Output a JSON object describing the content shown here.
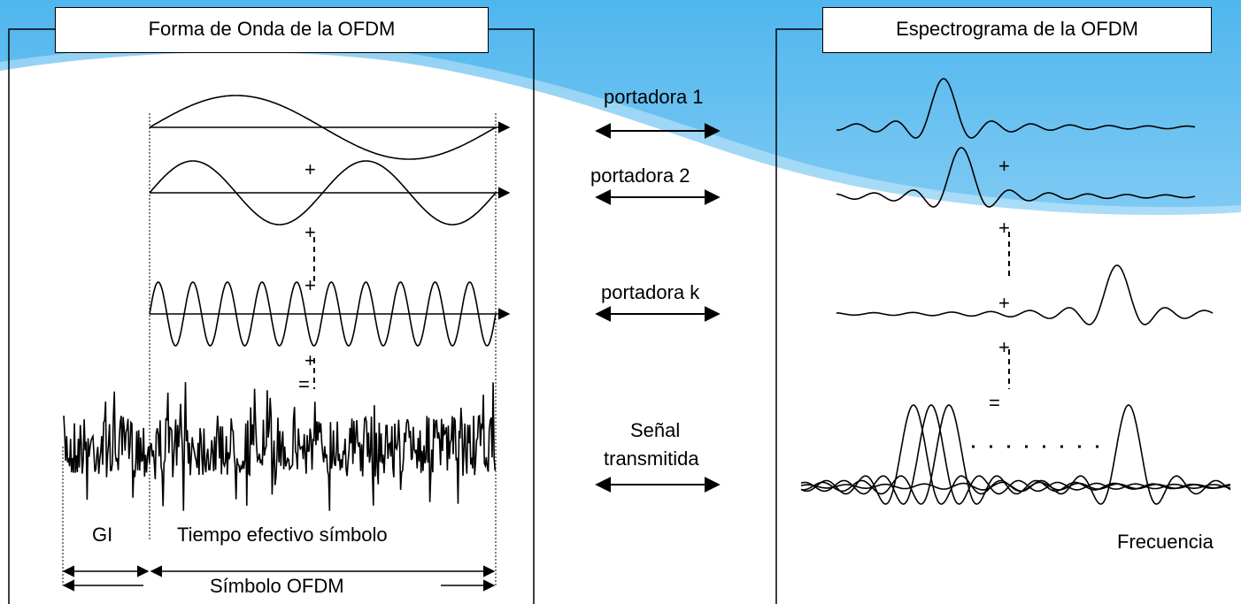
{
  "colors": {
    "sky": "#5bbcef",
    "sky_light": "#a9dcf7",
    "ink": "#000000",
    "paper": "#ffffff"
  },
  "left_panel": {
    "title": "Forma de Onda de la OFDM",
    "plus": "+",
    "equals": "=",
    "gi_label": "GI",
    "effective_time_label": "Tiempo  efectivo símbolo",
    "symbol_label": "Símbolo OFDM"
  },
  "middle": {
    "carrier_1": "portadora 1",
    "carrier_2": "portadora 2",
    "carrier_k": "portadora k",
    "signal_line1": "Señal",
    "signal_line2": "transmitida"
  },
  "right_panel": {
    "title": "Espectrograma de la OFDM",
    "plus": "+",
    "equals": "=",
    "frequency_label": "Frecuencia"
  }
}
